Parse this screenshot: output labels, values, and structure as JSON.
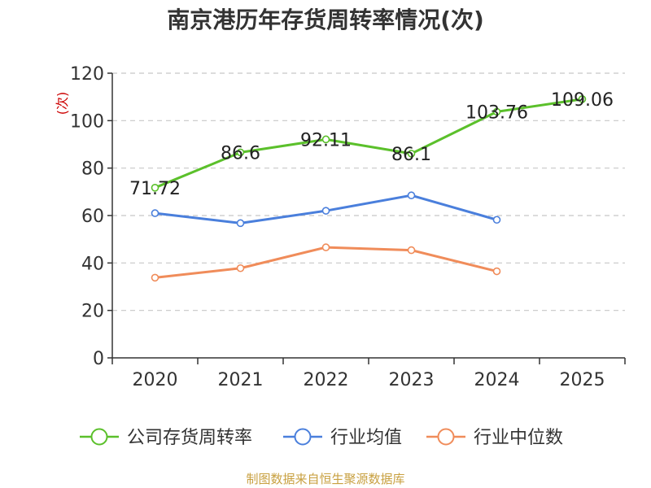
{
  "chart_data": {
    "type": "line",
    "title": "南京港历年存货周转率情况(次)",
    "ylabel": "(次)",
    "xlabel": "",
    "categories": [
      "2020",
      "2021",
      "2022",
      "2023",
      "2024",
      "2025"
    ],
    "ylim": [
      0,
      120
    ],
    "yticks": [
      0,
      20,
      40,
      60,
      80,
      100,
      120
    ],
    "grid": true,
    "legend_position": "bottom",
    "series": [
      {
        "name": "公司存货周转率",
        "color": "#5bc02b",
        "values": [
          71.72,
          86.6,
          92.11,
          86.1,
          103.76,
          109.06
        ],
        "labels": [
          "71.72",
          "86.6",
          "92.11",
          "86.1",
          "103.76",
          "109.06"
        ]
      },
      {
        "name": "行业均值",
        "color": "#4a7fdc",
        "values": [
          61.0,
          56.8,
          62.0,
          68.5,
          58.2,
          null
        ]
      },
      {
        "name": "行业中位数",
        "color": "#f08c5a",
        "values": [
          33.8,
          37.8,
          46.6,
          45.4,
          36.5,
          null
        ]
      }
    ],
    "source": "制图数据来自恒生聚源数据库"
  }
}
